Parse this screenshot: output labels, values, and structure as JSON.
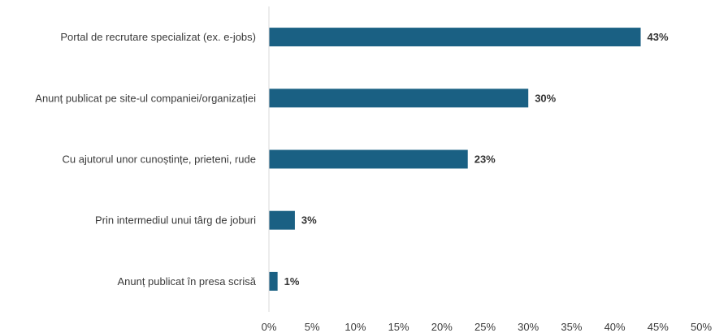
{
  "chart_data": {
    "type": "bar",
    "orientation": "horizontal",
    "categories": [
      "Portal de recrutare specializat (ex. e-jobs)",
      "Anunț publicat pe site-ul companiei/organizației",
      "Cu ajutorul unor cunoștințe, prieteni, rude",
      "Prin intermediul unui târg de joburi",
      "Anunț publicat în presa scrisă"
    ],
    "values": [
      43,
      30,
      23,
      3,
      1
    ],
    "data_labels": [
      "43%",
      "30%",
      "23%",
      "3%",
      "1%"
    ],
    "xlim": [
      0,
      50
    ],
    "x_ticks": [
      "0%",
      "5%",
      "10%",
      "15%",
      "20%",
      "25%",
      "30%",
      "35%",
      "40%",
      "45%",
      "50%"
    ],
    "bar_color": "#1a6083",
    "axis_color": "#d9d9d9",
    "title": "",
    "xlabel": "",
    "ylabel": "",
    "grid": false,
    "legend": "none"
  }
}
